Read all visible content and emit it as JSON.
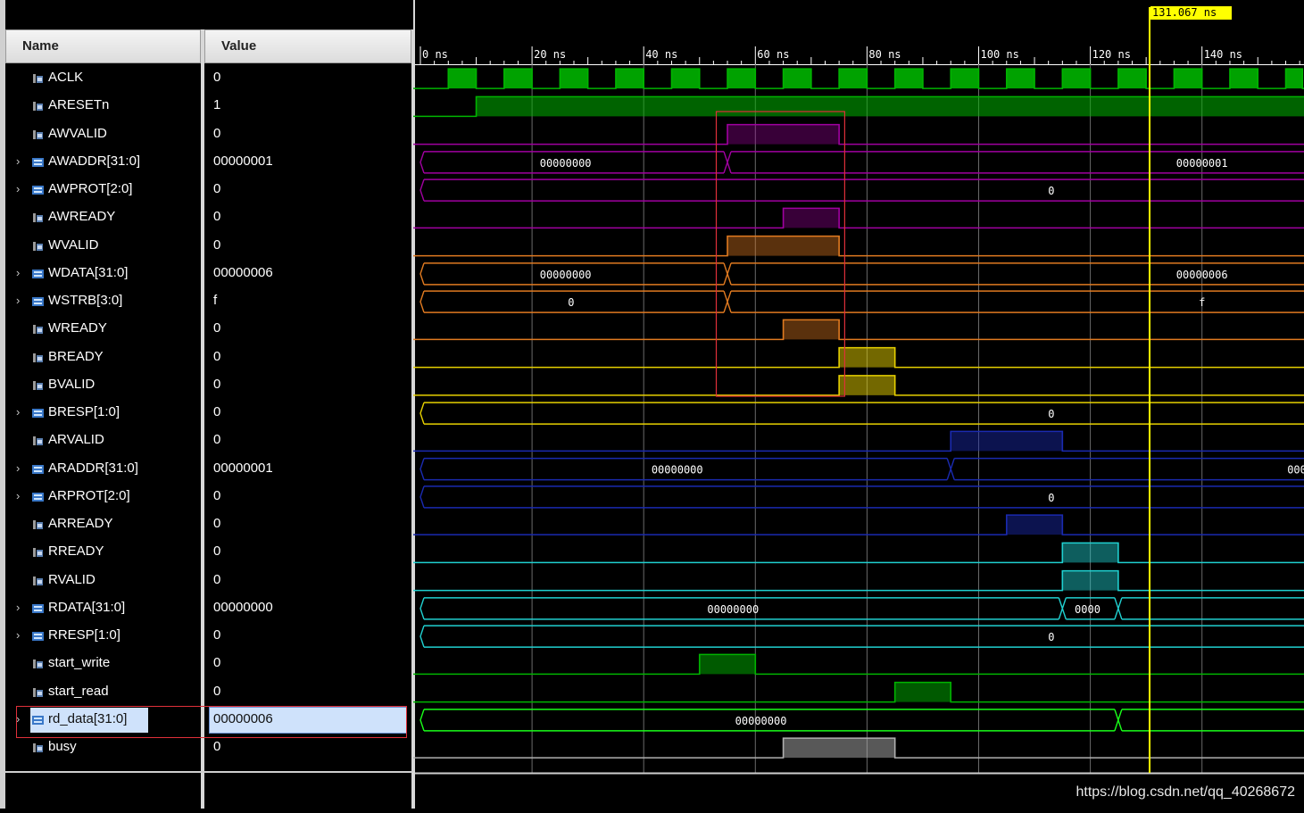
{
  "columns": {
    "name": "Name",
    "value": "Value"
  },
  "cursor": {
    "label": "131.067 ns"
  },
  "ruler": [
    "0 ns",
    "20 ns",
    "40 ns",
    "60 ns",
    "80 ns",
    "100 ns",
    "120 ns",
    "140 ns"
  ],
  "signals": [
    {
      "name": "ACLK",
      "value": "0",
      "kind": "bit"
    },
    {
      "name": "ARESETn",
      "value": "1",
      "kind": "bit"
    },
    {
      "name": "AWVALID",
      "value": "0",
      "kind": "bit"
    },
    {
      "name": "AWADDR[31:0]",
      "value": "00000001",
      "kind": "bus"
    },
    {
      "name": "AWPROT[2:0]",
      "value": "0",
      "kind": "bus"
    },
    {
      "name": "AWREADY",
      "value": "0",
      "kind": "bit"
    },
    {
      "name": "WVALID",
      "value": "0",
      "kind": "bit"
    },
    {
      "name": "WDATA[31:0]",
      "value": "00000006",
      "kind": "bus"
    },
    {
      "name": "WSTRB[3:0]",
      "value": "f",
      "kind": "bus"
    },
    {
      "name": "WREADY",
      "value": "0",
      "kind": "bit"
    },
    {
      "name": "BREADY",
      "value": "0",
      "kind": "bit"
    },
    {
      "name": "BVALID",
      "value": "0",
      "kind": "bit"
    },
    {
      "name": "BRESP[1:0]",
      "value": "0",
      "kind": "bus"
    },
    {
      "name": "ARVALID",
      "value": "0",
      "kind": "bit"
    },
    {
      "name": "ARADDR[31:0]",
      "value": "00000001",
      "kind": "bus"
    },
    {
      "name": "ARPROT[2:0]",
      "value": "0",
      "kind": "bus"
    },
    {
      "name": "ARREADY",
      "value": "0",
      "kind": "bit"
    },
    {
      "name": "RREADY",
      "value": "0",
      "kind": "bit"
    },
    {
      "name": "RVALID",
      "value": "0",
      "kind": "bit"
    },
    {
      "name": "RDATA[31:0]",
      "value": "00000000",
      "kind": "bus"
    },
    {
      "name": "RRESP[1:0]",
      "value": "0",
      "kind": "bus"
    },
    {
      "name": "start_write",
      "value": "0",
      "kind": "bit"
    },
    {
      "name": "start_read",
      "value": "0",
      "kind": "bit"
    },
    {
      "name": "rd_data[31:0]",
      "value": "00000006",
      "kind": "bus",
      "selected": true
    },
    {
      "name": "busy",
      "value": "0",
      "kind": "bit"
    }
  ],
  "bus_labels": {
    "awaddr": [
      "00000000",
      "00000001"
    ],
    "awprot": [
      "0"
    ],
    "wdata": [
      "00000000",
      "00000006"
    ],
    "wstrb": [
      "0",
      "f"
    ],
    "bresp": [
      "0"
    ],
    "araddr": [
      "00000000",
      "000"
    ],
    "arprot": [
      "0"
    ],
    "rdata": [
      "00000000",
      "0000"
    ],
    "rresp": [
      "0"
    ],
    "rd_data": [
      "00000000"
    ]
  },
  "colors": {
    "clk": "#00b400",
    "axi_aw": "#a000a0",
    "axi_w": "#e07a20",
    "axi_b": "#e6d000",
    "axi_ar": "#1a2ab0",
    "axi_r": "#20d0d0",
    "ctrl": "#00b400",
    "busy": "#b0b0b0",
    "cursor": "#ffff00",
    "annotation": "#e0303a"
  },
  "watermark": "https://blog.csdn.net/qq_40268672"
}
